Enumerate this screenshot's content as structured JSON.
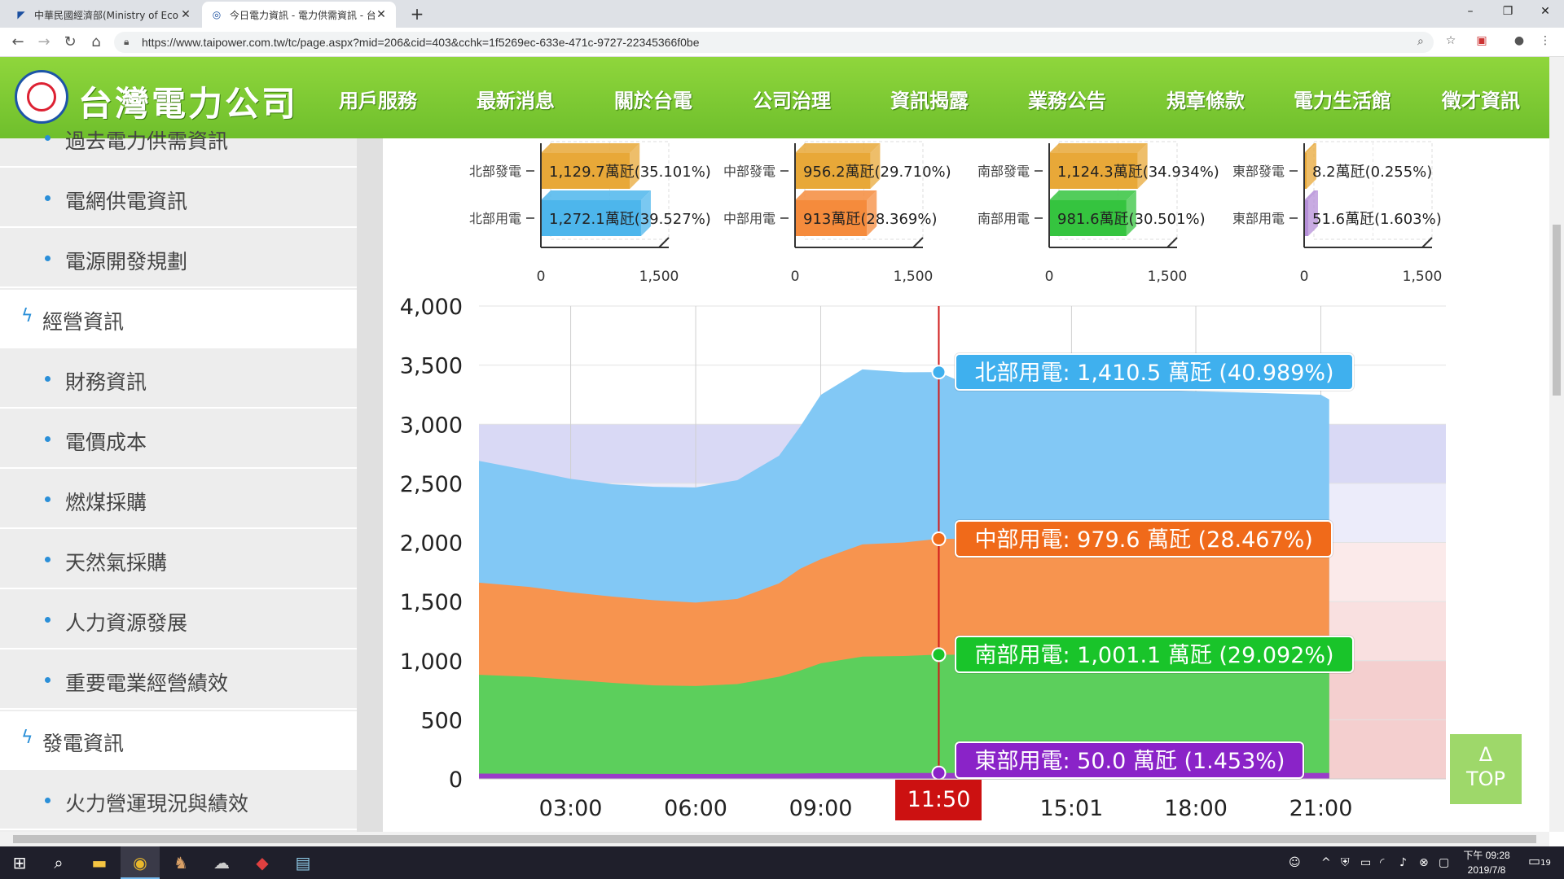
{
  "browser": {
    "tabs": [
      {
        "title": "中華民國經濟部(Ministry of Econ",
        "favicon": "moea-logo-icon"
      },
      {
        "title": "今日電力資訊 - 電力供需資訊 - 台",
        "favicon": "taipower-favicon-icon"
      }
    ],
    "url": "https://www.taipower.com.tw/tc/page.aspx?mid=206&cid=403&cchk=1f5269ec-633e-471c-9727-22345366f0be"
  },
  "site": {
    "logo_text": "台灣電力公司",
    "nav": [
      "用戶服務",
      "最新消息",
      "關於台電",
      "公司治理",
      "資訊揭露",
      "業務公告",
      "規章條款",
      "電力生活館",
      "徵才資訊"
    ],
    "active_nav": "資訊揭露"
  },
  "sidebar": {
    "items": [
      {
        "label": "過去電力供需資訊",
        "type": "sub"
      },
      {
        "label": "電網供電資訊",
        "type": "sub"
      },
      {
        "label": "電源開發規劃",
        "type": "sub"
      },
      {
        "label": "經營資訊",
        "type": "section"
      },
      {
        "label": "財務資訊",
        "type": "sub"
      },
      {
        "label": "電價成本",
        "type": "sub"
      },
      {
        "label": "燃煤採購",
        "type": "sub"
      },
      {
        "label": "天然氣採購",
        "type": "sub"
      },
      {
        "label": "人力資源發展",
        "type": "sub"
      },
      {
        "label": "重要電業經營績效",
        "type": "sub"
      },
      {
        "label": "發電資訊",
        "type": "section"
      },
      {
        "label": "火力營運現況與績效",
        "type": "sub"
      }
    ]
  },
  "chart_data": [
    {
      "type": "bar",
      "orientation": "horizontal",
      "unit": "萬瓩",
      "xlim": [
        0,
        1500
      ],
      "ticks": [
        "0",
        "1,500"
      ],
      "panels": [
        {
          "region": "北部",
          "bars": [
            {
              "label": "北部發電",
              "value": 1129.7,
              "text": "1,129.7萬瓩(35.101%)",
              "color": "#e8a838"
            },
            {
              "label": "北部用電",
              "value": 1272.1,
              "text": "1,272.1萬瓩(39.527%)",
              "color": "#4db6ec"
            }
          ]
        },
        {
          "region": "中部",
          "bars": [
            {
              "label": "中部發電",
              "value": 956.2,
              "text": "956.2萬瓩(29.710%)",
              "color": "#e8a838"
            },
            {
              "label": "中部用電",
              "value": 913,
              "text": "913萬瓩(28.369%)",
              "color": "#f58b3c"
            }
          ]
        },
        {
          "region": "南部",
          "bars": [
            {
              "label": "南部發電",
              "value": 1124.3,
              "text": "1,124.3萬瓩(34.934%)",
              "color": "#e8a838"
            },
            {
              "label": "南部用電",
              "value": 981.6,
              "text": "981.6萬瓩(30.501%)",
              "color": "#35c43f"
            }
          ]
        },
        {
          "region": "東部",
          "bars": [
            {
              "label": "東部發電",
              "value": 8.2,
              "text": "8.2萬瓩(0.255%)",
              "color": "#e8a838"
            },
            {
              "label": "東部用電",
              "value": 51.6,
              "text": "51.6萬瓩(1.603%)",
              "color": "#b58fd8"
            }
          ]
        }
      ]
    },
    {
      "type": "area",
      "stacked": true,
      "ylim": [
        0,
        4000
      ],
      "yticks": [
        "0",
        "500",
        "1,000",
        "1,500",
        "2,000",
        "2,500",
        "3,000",
        "3,500",
        "4,000"
      ],
      "xlim_hours": [
        0.8,
        24
      ],
      "xticks": [
        {
          "label": "03:00",
          "hour": 3
        },
        {
          "label": "06:00",
          "hour": 6
        },
        {
          "label": "09:00",
          "hour": 9
        },
        {
          "label": "15:01",
          "hour": 15.017
        },
        {
          "label": "18:00",
          "hour": 18
        },
        {
          "label": "21:00",
          "hour": 21
        }
      ],
      "cursor": {
        "label": "11:50",
        "hour": 11.833
      },
      "bands": [
        {
          "from": 2500,
          "to": 3000,
          "color": "#d9d9f5"
        },
        {
          "from": 2000,
          "to": 2500,
          "color": "#ececfa"
        },
        {
          "from": 1500,
          "to": 2000,
          "color": "#fbeaea"
        },
        {
          "from": 1000,
          "to": 1500,
          "color": "#f9e0e0"
        },
        {
          "from": 0,
          "to": 1000,
          "color": "#f4cfcf"
        }
      ],
      "hours": [
        0.8,
        2,
        3,
        4,
        5,
        6,
        7,
        8,
        8.5,
        9,
        10,
        11,
        11.833,
        12.5,
        13.5,
        15,
        16,
        17,
        18,
        19,
        20,
        21,
        21.2
      ],
      "series": [
        {
          "name": "東部用電",
          "color": "#9a3cc8",
          "values": [
            45,
            44,
            43,
            42,
            41,
            41,
            42,
            44,
            46,
            48,
            49,
            50,
            50,
            50,
            50,
            50,
            50,
            50,
            50,
            50,
            50,
            50,
            50
          ]
        },
        {
          "name": "南部用電",
          "color": "#5ccf5c",
          "values": [
            835,
            820,
            795,
            770,
            750,
            745,
            760,
            820,
            870,
            930,
            985,
            990,
            1001,
            1000,
            1000,
            1000,
            1000,
            1000,
            1000,
            1000,
            1000,
            1000,
            1000
          ]
        },
        {
          "name": "中部用電",
          "color": "#f7944f",
          "values": [
            780,
            760,
            740,
            730,
            720,
            705,
            720,
            790,
            860,
            880,
            950,
            960,
            980,
            980,
            980,
            980,
            980,
            980,
            980,
            980,
            980,
            980,
            980
          ]
        },
        {
          "name": "北部用電",
          "color": "#82c8f5",
          "values": [
            1030,
            985,
            960,
            950,
            960,
            975,
            1005,
            1080,
            1200,
            1390,
            1480,
            1440,
            1410,
            1310,
            1290,
            1280,
            1270,
            1260,
            1250,
            1240,
            1230,
            1220,
            1180
          ]
        }
      ],
      "tooltips": [
        {
          "text": "北部用電: 1,410.5 萬瓩 (40.989%)",
          "color": "#3fb0ee",
          "y": 3441
        },
        {
          "text": "中部用電: 979.6 萬瓩 (28.467%)",
          "color": "#f06a1a",
          "y": 2031
        },
        {
          "text": "南部用電: 1,001.1 萬瓩 (29.092%)",
          "color": "#19c42a",
          "y": 1051
        },
        {
          "text": "東部用電: 50.0 萬瓩 (1.453%)",
          "color": "#8a23c8",
          "y": 50
        }
      ]
    }
  ],
  "top_button": {
    "arrow": "Δ",
    "label": "TOP"
  },
  "taskbar": {
    "clock_time": "下午 09:28",
    "clock_date": "2019/7/8",
    "notification_count": "19"
  }
}
